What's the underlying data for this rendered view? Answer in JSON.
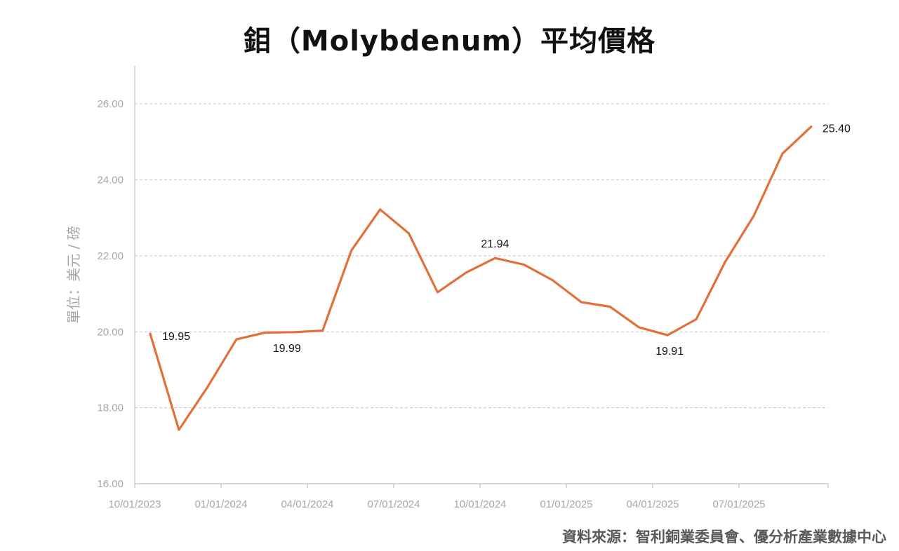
{
  "chart_data": {
    "type": "line",
    "title": "鉬（Molybdenum）平均價格",
    "ylabel": "單位：美元 / 磅",
    "xlabel": "",
    "source": "資料來源：智利銅業委員會、優分析產業數據中心",
    "ylim": [
      16,
      27
    ],
    "yticks": [
      16,
      18,
      20,
      22,
      24,
      26
    ],
    "ytick_labels": [
      "16.00",
      "18.00",
      "20.00",
      "22.00",
      "24.00",
      "26.00"
    ],
    "x": [
      "10/01/2023",
      "11/01/2023",
      "12/01/2023",
      "01/01/2024",
      "02/01/2024",
      "03/01/2024",
      "04/01/2024",
      "05/01/2024",
      "06/01/2024",
      "07/01/2024",
      "08/01/2024",
      "09/01/2024",
      "10/01/2024",
      "11/01/2024",
      "12/01/2024",
      "01/01/2025",
      "02/01/2025",
      "03/01/2025",
      "04/01/2025",
      "05/01/2025",
      "06/01/2025",
      "07/01/2025",
      "08/01/2025",
      "09/01/2025"
    ],
    "xtick_labels": [
      "10/01/2023",
      "01/01/2024",
      "04/01/2024",
      "07/01/2024",
      "10/01/2024",
      "01/01/2025",
      "04/01/2025",
      "07/01/2025"
    ],
    "series": [
      {
        "color": "#E2703A",
        "values": [
          19.95,
          17.42,
          18.55,
          19.8,
          19.98,
          19.99,
          20.03,
          22.14,
          23.22,
          22.59,
          21.04,
          21.56,
          21.94,
          21.77,
          21.36,
          20.78,
          20.66,
          20.12,
          19.91,
          20.33,
          21.83,
          23.05,
          24.69,
          25.4
        ]
      }
    ],
    "annotations": [
      {
        "index": 0,
        "text": "19.95"
      },
      {
        "index": 5,
        "text": "19.99"
      },
      {
        "index": 12,
        "text": "21.94"
      },
      {
        "index": 18,
        "text": "19.91"
      },
      {
        "index": 23,
        "text": "25.40"
      }
    ],
    "grid": true,
    "gridline_color": "#c8c8c8",
    "axis_color": "#bfbfbf"
  }
}
